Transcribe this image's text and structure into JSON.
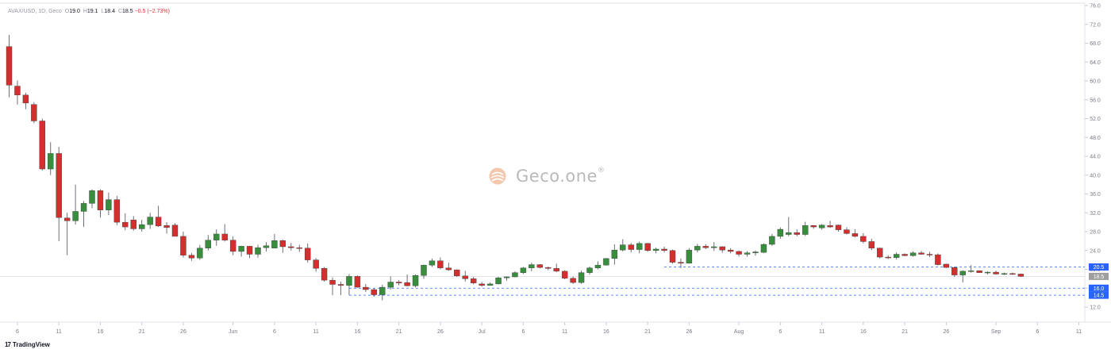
{
  "legend": {
    "symbol": "AVAX/USD, 1D, Geco",
    "o_key": "O",
    "o_val": "19.0",
    "h_key": "H",
    "h_val": "19.1",
    "l_key": "L",
    "l_val": "18.4",
    "c_key": "C",
    "c_val": "18.5",
    "change": "−0.5 (−2.73%)"
  },
  "watermark": {
    "text": "Geco.one",
    "reg": "®"
  },
  "branding": {
    "text": "TradingView",
    "mark": "17"
  },
  "colors": {
    "up": "#388e3c",
    "down": "#d32f2f",
    "level": "#2962ff",
    "price_label": "#9e9e9e"
  },
  "chart_data": {
    "type": "candlestick",
    "y_axis_ticks": [
      "76.0",
      "72.0",
      "68.0",
      "64.0",
      "60.0",
      "56.0",
      "52.0",
      "48.0",
      "44.0",
      "40.0",
      "36.0",
      "32.0",
      "28.0",
      "24.0",
      "20.0",
      "16.0",
      "12.0"
    ],
    "ylim": [
      10.5,
      76.0
    ],
    "x_axis_labels": [
      {
        "i": 1,
        "label": "6"
      },
      {
        "i": 6,
        "label": "11"
      },
      {
        "i": 11,
        "label": "16"
      },
      {
        "i": 16,
        "label": "21"
      },
      {
        "i": 21,
        "label": "26"
      },
      {
        "i": 27,
        "label": "Jun"
      },
      {
        "i": 32,
        "label": "6"
      },
      {
        "i": 37,
        "label": "11"
      },
      {
        "i": 42,
        "label": "16"
      },
      {
        "i": 47,
        "label": "21"
      },
      {
        "i": 52,
        "label": "26"
      },
      {
        "i": 57,
        "label": "Jul"
      },
      {
        "i": 62,
        "label": "6"
      },
      {
        "i": 67,
        "label": "11"
      },
      {
        "i": 72,
        "label": "16"
      },
      {
        "i": 77,
        "label": "21"
      },
      {
        "i": 82,
        "label": "26"
      },
      {
        "i": 88,
        "label": "Aug"
      },
      {
        "i": 93,
        "label": "6"
      },
      {
        "i": 98,
        "label": "11"
      },
      {
        "i": 103,
        "label": "16"
      },
      {
        "i": 108,
        "label": "21"
      },
      {
        "i": 113,
        "label": "26"
      },
      {
        "i": 119,
        "label": "Sep"
      },
      {
        "i": 124,
        "label": "6"
      },
      {
        "i": 129,
        "label": "11"
      }
    ],
    "candles": [
      [
        67.3,
        69.8,
        56.5,
        59.1
      ],
      [
        58.9,
        60.1,
        55.0,
        57.0
      ],
      [
        57.0,
        57.5,
        54.0,
        55.3
      ],
      [
        55.0,
        55.5,
        51.0,
        51.5
      ],
      [
        51.5,
        52.0,
        41.0,
        41.3
      ],
      [
        41.3,
        47.0,
        40.0,
        44.6
      ],
      [
        44.6,
        46.0,
        26.0,
        31.0
      ],
      [
        30.9,
        32.0,
        23.0,
        30.3
      ],
      [
        30.3,
        38.0,
        29.5,
        32.3
      ],
      [
        32.3,
        34.5,
        29.0,
        34.0
      ],
      [
        34.0,
        37.0,
        33.0,
        36.7
      ],
      [
        36.7,
        37.0,
        31.0,
        32.6
      ],
      [
        32.6,
        36.3,
        31.5,
        34.8
      ],
      [
        34.8,
        35.6,
        29.4,
        30.0
      ],
      [
        30.0,
        31.9,
        28.3,
        29.0
      ],
      [
        30.5,
        31.3,
        28.2,
        28.6
      ],
      [
        28.6,
        30.5,
        28.0,
        29.5
      ],
      [
        29.5,
        32.0,
        28.6,
        31.1
      ],
      [
        31.1,
        33.5,
        29.0,
        29.2
      ],
      [
        29.3,
        30.0,
        27.6,
        28.9
      ],
      [
        29.4,
        29.8,
        27.3,
        27.0
      ],
      [
        27.0,
        28.0,
        22.5,
        23.0
      ],
      [
        23.0,
        23.5,
        21.8,
        22.4
      ],
      [
        22.4,
        25.2,
        22.0,
        24.5
      ],
      [
        24.5,
        27.3,
        24.0,
        26.2
      ],
      [
        26.2,
        28.5,
        25.0,
        27.5
      ],
      [
        27.5,
        29.6,
        25.9,
        26.2
      ],
      [
        26.2,
        27.0,
        23.0,
        23.8
      ],
      [
        23.8,
        25.0,
        22.7,
        24.9
      ],
      [
        24.9,
        25.0,
        22.4,
        23.2
      ],
      [
        23.2,
        25.2,
        22.5,
        24.6
      ],
      [
        24.6,
        25.8,
        23.8,
        25.0
      ],
      [
        24.5,
        27.5,
        24.5,
        26.1
      ],
      [
        26.1,
        26.3,
        23.5,
        24.8
      ],
      [
        24.8,
        25.6,
        24.0,
        24.6
      ],
      [
        24.6,
        25.2,
        23.7,
        24.5
      ],
      [
        24.5,
        25.5,
        21.4,
        22.0
      ],
      [
        22.0,
        22.4,
        19.5,
        20.2
      ],
      [
        20.2,
        20.5,
        17.4,
        17.7
      ],
      [
        17.7,
        18.3,
        14.5,
        16.8
      ],
      [
        16.8,
        17.4,
        14.5,
        16.6
      ],
      [
        16.6,
        19.0,
        14.5,
        18.5
      ],
      [
        18.5,
        18.7,
        16.1,
        16.2
      ],
      [
        16.2,
        16.9,
        15.2,
        15.7
      ],
      [
        15.7,
        16.0,
        14.2,
        14.6
      ],
      [
        14.6,
        16.7,
        13.4,
        16.2
      ],
      [
        16.2,
        18.5,
        15.7,
        17.3
      ],
      [
        17.3,
        17.7,
        16.6,
        17.1
      ],
      [
        17.2,
        18.9,
        16.4,
        16.5
      ],
      [
        16.5,
        18.9,
        16.2,
        18.7
      ],
      [
        18.7,
        21.0,
        18.0,
        20.9
      ],
      [
        20.9,
        22.3,
        20.5,
        21.8
      ],
      [
        21.8,
        22.5,
        20.0,
        20.3
      ],
      [
        20.3,
        21.4,
        19.7,
        19.9
      ],
      [
        19.9,
        20.0,
        18.4,
        18.6
      ],
      [
        18.6,
        19.7,
        17.4,
        18.0
      ],
      [
        18.0,
        18.4,
        16.8,
        17.1
      ],
      [
        16.9,
        17.3,
        16.3,
        16.6
      ],
      [
        16.6,
        17.2,
        16.5,
        16.9
      ],
      [
        16.9,
        18.4,
        16.8,
        18.2
      ],
      [
        18.2,
        18.5,
        17.6,
        18.4
      ],
      [
        18.4,
        19.6,
        18.3,
        19.3
      ],
      [
        19.3,
        20.5,
        19.0,
        20.3
      ],
      [
        20.3,
        21.4,
        19.6,
        21.0
      ],
      [
        21.0,
        21.1,
        20.2,
        20.4
      ],
      [
        20.4,
        20.6,
        19.8,
        20.2
      ],
      [
        20.2,
        21.2,
        19.4,
        19.6
      ],
      [
        19.6,
        19.8,
        17.9,
        18.1
      ],
      [
        18.1,
        18.5,
        16.9,
        17.2
      ],
      [
        17.2,
        19.7,
        16.9,
        19.3
      ],
      [
        19.3,
        20.6,
        18.9,
        20.3
      ],
      [
        20.3,
        21.7,
        20.0,
        20.9
      ],
      [
        20.9,
        22.4,
        20.8,
        22.3
      ],
      [
        22.3,
        25.3,
        21.0,
        24.1
      ],
      [
        24.1,
        26.4,
        23.8,
        25.2
      ],
      [
        25.2,
        25.6,
        23.6,
        24.2
      ],
      [
        24.2,
        25.9,
        23.4,
        25.5
      ],
      [
        25.5,
        25.6,
        23.7,
        24.0
      ],
      [
        24.0,
        24.6,
        23.4,
        24.3
      ],
      [
        24.3,
        24.8,
        23.6,
        24.0
      ],
      [
        24.0,
        24.2,
        21.2,
        21.5
      ],
      [
        21.5,
        22.3,
        20.3,
        21.3
      ],
      [
        21.3,
        24.5,
        21.2,
        24.1
      ],
      [
        24.1,
        25.4,
        23.6,
        24.9
      ],
      [
        24.9,
        25.3,
        24.3,
        24.6
      ],
      [
        24.6,
        25.8,
        23.9,
        24.8
      ],
      [
        24.8,
        24.9,
        23.5,
        24.1
      ],
      [
        24.1,
        24.5,
        23.4,
        23.8
      ],
      [
        23.8,
        24.0,
        22.7,
        23.2
      ],
      [
        23.2,
        23.9,
        22.7,
        23.5
      ],
      [
        23.5,
        24.0,
        22.9,
        23.7
      ],
      [
        23.6,
        25.5,
        23.5,
        25.3
      ],
      [
        25.3,
        27.5,
        25.0,
        27.0
      ],
      [
        27.0,
        28.9,
        26.5,
        28.5
      ],
      [
        27.4,
        31.1,
        27.0,
        27.8
      ],
      [
        27.8,
        28.5,
        27.0,
        27.4
      ],
      [
        27.4,
        30.1,
        27.1,
        29.3
      ],
      [
        29.3,
        29.4,
        28.6,
        29.0
      ],
      [
        28.8,
        29.6,
        28.4,
        29.4
      ],
      [
        29.3,
        30.3,
        28.8,
        29.0
      ],
      [
        29.4,
        29.5,
        28.0,
        28.4
      ],
      [
        28.4,
        28.9,
        27.4,
        27.6
      ],
      [
        27.6,
        28.5,
        26.8,
        27.0
      ],
      [
        27.0,
        27.7,
        25.5,
        25.9
      ],
      [
        25.9,
        26.5,
        24.1,
        24.5
      ],
      [
        24.5,
        24.6,
        22.3,
        22.6
      ],
      [
        22.6,
        23.0,
        22.2,
        22.5
      ],
      [
        22.5,
        23.6,
        22.1,
        23.2
      ],
      [
        23.2,
        23.4,
        22.8,
        22.9
      ],
      [
        22.9,
        23.8,
        22.7,
        23.5
      ],
      [
        23.5,
        23.9,
        23.1,
        23.2
      ],
      [
        23.2,
        23.7,
        22.6,
        23.1
      ],
      [
        23.1,
        23.4,
        20.8,
        21.0
      ],
      [
        21.1,
        21.2,
        20.3,
        20.4
      ],
      [
        20.4,
        20.6,
        18.4,
        18.8
      ],
      [
        18.8,
        19.8,
        17.2,
        19.6
      ],
      [
        19.6,
        20.9,
        19.3,
        19.7
      ],
      [
        19.7,
        19.8,
        19.3,
        19.3
      ],
      [
        19.3,
        19.6,
        18.9,
        19.4
      ],
      [
        19.4,
        19.7,
        18.9,
        19.0
      ],
      [
        19.0,
        19.3,
        18.8,
        19.1
      ],
      [
        19.1,
        19.3,
        18.8,
        19.0
      ],
      [
        19.0,
        19.1,
        18.4,
        18.5
      ]
    ],
    "levels": [
      {
        "value": 20.5,
        "label": "20.5",
        "start": 79
      },
      {
        "value": 16.0,
        "label": "16.0",
        "start": 41
      },
      {
        "value": 14.5,
        "label": "14.5",
        "start": 41
      }
    ],
    "last_price": {
      "value": 18.5,
      "label": "18.5"
    }
  }
}
